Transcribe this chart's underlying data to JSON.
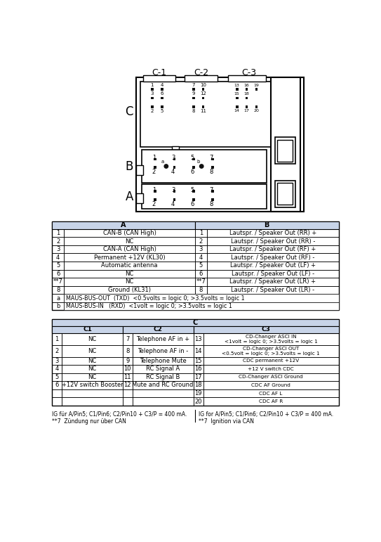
{
  "title_labels": [
    "C-1",
    "C-2",
    "C-3"
  ],
  "connector_letters": [
    "C",
    "B",
    "A"
  ],
  "table_AB_rows": [
    [
      "1",
      "CAN-B (CAN High)",
      "1",
      "Lautspr. / Speaker Out (RR) +"
    ],
    [
      "2",
      "NC",
      "2",
      "Lautspr. / Speaker Out (RR) -"
    ],
    [
      "3",
      "CAN-A (CAN High)",
      "3",
      "Lautspr. / Speaker Out (RF) +"
    ],
    [
      "4",
      "Permanent +12V (KL30)",
      "4",
      "Lautspr. / Speaker Out (RF) -"
    ],
    [
      "5",
      "Automatic antenna",
      "5",
      "Lautspr. / Speaker Out (LF) +"
    ],
    [
      "6",
      "NC",
      "6",
      "Lautspr. / Speaker Out (LF) -"
    ],
    [
      "**7",
      "NC",
      "**7",
      "Lautspr. / Speaker Out (LR) +"
    ],
    [
      "8",
      "Ground (KL31)",
      "8",
      "Lautspr. / Speaker Out (LR) -"
    ],
    [
      "a",
      "MAUS-BUS-OUT  (TXD)  <0.5volts = logic 0; >3.5volts = logic 1",
      "",
      ""
    ],
    [
      "b",
      "MAUS-BUS-IN   (RXD)  <1volt = logic 0; >3.5volts = logic 1",
      "",
      ""
    ]
  ],
  "table_C_rows": [
    [
      "1",
      "NC",
      "7",
      "Telephone AF in +",
      "13",
      "CD-Changer ASCI IN\n<1volt = logic 0; >3.5volts = logic 1"
    ],
    [
      "2",
      "NC",
      "8",
      "Telephone AF in -",
      "14",
      "CD-Changer ASCI OUT\n<0.5volt = logic 0; >3.5volts = logic 1"
    ],
    [
      "3",
      "NC",
      "9",
      "Telephone Mute",
      "15",
      "CDC permanent +12V"
    ],
    [
      "4",
      "NC",
      "10",
      "RC Signal A",
      "16",
      "+12 V switch CDC"
    ],
    [
      "5",
      "NC",
      "11",
      "RC Signal B",
      "17",
      "CD-Changer ASCI Ground"
    ],
    [
      "6",
      "+12V switch Booster",
      "12",
      "Mute and RC Ground",
      "18",
      "CDC AF Ground"
    ],
    [
      "",
      "",
      "",
      "",
      "19",
      "CDC AF L"
    ],
    [
      "",
      "",
      "",
      "",
      "20",
      "CDC AF R"
    ]
  ],
  "footer_left": "IG für A/Pin5; C1/Pin6; C2/Pin10 + C3/P = 400 mA.\n**7  Zündung nur über CAN",
  "footer_right": "IG for A/Pin5; C1/Pin6; C2/Pin10 + C3/P = 400 mA.\n**7  Ignition via CAN",
  "header_bg": "#c8d4e8",
  "pin_color": "#111111"
}
